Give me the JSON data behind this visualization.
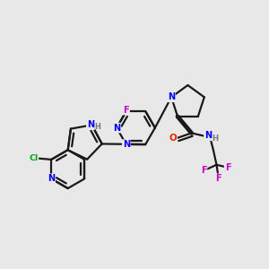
{
  "bg_color": "#e8e8e8",
  "bond_color": "#1a1a1a",
  "bond_width": 1.6,
  "atom_colors": {
    "N": "#0000ee",
    "F": "#cc00cc",
    "Cl": "#00aa00",
    "O": "#ee2200",
    "H": "#777777",
    "C": "#1a1a1a"
  },
  "figsize": [
    3.0,
    3.0
  ],
  "dpi": 100
}
